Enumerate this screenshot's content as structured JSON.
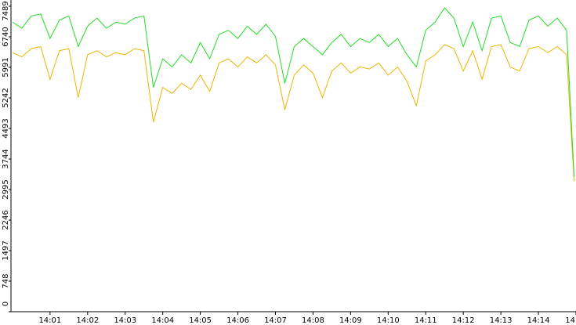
{
  "chart_data": {
    "type": "line",
    "x": [
      0,
      0.25,
      0.5,
      0.75,
      1,
      1.25,
      1.5,
      1.75,
      2,
      2.25,
      2.5,
      2.75,
      3,
      3.25,
      3.5,
      3.75,
      4,
      4.25,
      4.5,
      4.75,
      5,
      5.25,
      5.5,
      5.75,
      6,
      6.25,
      6.5,
      6.75,
      7,
      7.25,
      7.5,
      7.75,
      8,
      8.25,
      8.5,
      8.75,
      9,
      9.25,
      9.5,
      9.75,
      10,
      10.25,
      10.5,
      10.75,
      11,
      11.25,
      11.5,
      11.75,
      12,
      12.25,
      12.5,
      12.75,
      13,
      13.25,
      13.5,
      13.75,
      14,
      14.25,
      14.5,
      14.75,
      14.95
    ],
    "series": [
      {
        "color": "#22dd22",
        "values": [
          7100,
          6950,
          7250,
          7300,
          6700,
          7150,
          7250,
          6500,
          7000,
          7200,
          6950,
          7100,
          7050,
          7200,
          7250,
          5500,
          6200,
          6000,
          6300,
          6100,
          6600,
          6200,
          6800,
          6900,
          6700,
          7000,
          6800,
          7050,
          6750,
          5600,
          6500,
          6700,
          6500,
          6300,
          6600,
          6800,
          6500,
          6700,
          6600,
          6800,
          6500,
          6700,
          6300,
          6000,
          6900,
          7100,
          7450,
          7200,
          6500,
          7100,
          6400,
          7200,
          7250,
          6600,
          6500,
          7150,
          7250,
          7000,
          7200,
          6900,
          3300
        ]
      },
      {
        "color": "#f0b400",
        "values": [
          6350,
          6250,
          6450,
          6500,
          5700,
          6400,
          6450,
          5250,
          6300,
          6400,
          6250,
          6350,
          6300,
          6450,
          6400,
          4650,
          5500,
          5350,
          5600,
          5450,
          5800,
          5400,
          6100,
          6200,
          6000,
          6250,
          6100,
          6300,
          6050,
          4950,
          5800,
          6050,
          5850,
          5250,
          5900,
          6100,
          5850,
          6000,
          5950,
          6100,
          5800,
          6000,
          5650,
          5050,
          6150,
          6300,
          6550,
          6450,
          5900,
          6400,
          5700,
          6500,
          6550,
          6000,
          5900,
          6450,
          6500,
          6350,
          6500,
          6300,
          3200
        ]
      }
    ],
    "xlim": [
      -0.04,
      15
    ],
    "xticks": [
      {
        "value": 1,
        "label": "14:01"
      },
      {
        "value": 2,
        "label": "14:02"
      },
      {
        "value": 3,
        "label": "14:03"
      },
      {
        "value": 4,
        "label": "14:04"
      },
      {
        "value": 5,
        "label": "14:05"
      },
      {
        "value": 6,
        "label": "14:06"
      },
      {
        "value": 7,
        "label": "14:07"
      },
      {
        "value": 8,
        "label": "14:08"
      },
      {
        "value": 9,
        "label": "14:09"
      },
      {
        "value": 10,
        "label": "14:10"
      },
      {
        "value": 11,
        "label": "14:11"
      },
      {
        "value": 12,
        "label": "14:12"
      },
      {
        "value": 13,
        "label": "14:13"
      },
      {
        "value": 14,
        "label": "14:14"
      },
      {
        "value": 15,
        "label": "14"
      }
    ],
    "ylim": [
      0,
      7489
    ],
    "yticks": [
      0,
      748,
      1497,
      2246,
      2995,
      3744,
      4493,
      5242,
      5991,
      6740,
      7489
    ]
  }
}
